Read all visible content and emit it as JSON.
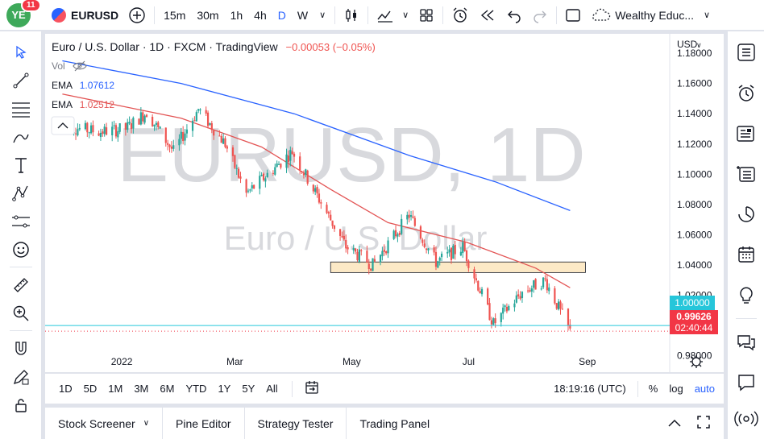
{
  "topbar": {
    "notification_count": "11",
    "avatar_text": "YE",
    "symbol": "EURUSD",
    "intervals": [
      "15m",
      "30m",
      "1h",
      "4h",
      "D",
      "W"
    ],
    "active_interval": "D",
    "layout_name": "Wealthy Educ..."
  },
  "legend": {
    "title": "Euro / U.S. Dollar · 1D · FXCM · TradingView",
    "change": "−0.00053 (−0.05%)",
    "vol": "Vol",
    "ema1_label": "EMA",
    "ema1_value": "1.07612",
    "ema2_label": "EMA",
    "ema2_value": "1.02512"
  },
  "watermark": {
    "symbol": "EURUSD, 1D",
    "name": "Euro / U.S. Dollar"
  },
  "price_axis": {
    "currency": "USD",
    "ticks": [
      "1.18000",
      "1.16000",
      "1.14000",
      "1.12000",
      "1.10000",
      "1.08000",
      "1.06000",
      "1.04000",
      "1.02000",
      "1.00000",
      "0.98000"
    ],
    "last_price": "0.99626",
    "countdown": "02:40:44",
    "highlight_price": "1.00000"
  },
  "time_axis": {
    "ticks": [
      "2022",
      "Mar",
      "May",
      "Jul",
      "Sep"
    ]
  },
  "range_bar": {
    "ranges": [
      "1D",
      "5D",
      "1M",
      "3M",
      "6M",
      "YTD",
      "1Y",
      "5Y",
      "All"
    ],
    "clock": "18:19:16 (UTC)",
    "percent": "%",
    "log": "log",
    "auto": "auto"
  },
  "bottom_tabs": [
    "Stock Screener",
    "Pine Editor",
    "Strategy Tester",
    "Trading Panel"
  ],
  "colors": {
    "up": "#26a69a",
    "down": "#ef5350",
    "ema_blue": "#2962ff",
    "ema_red": "#e35454",
    "accent": "#2962ff",
    "zone": "#fce9c6"
  },
  "chart_data": {
    "type": "candlestick",
    "symbol": "EURUSD",
    "timeframe": "1D",
    "x_ticks": [
      "2022",
      "Mar",
      "May",
      "Jul",
      "Sep"
    ],
    "ylim": [
      0.975,
      1.185
    ],
    "log_scale": false,
    "grid": false,
    "close_path": [
      {
        "t": "2021-12-01",
        "v": 1.132
      },
      {
        "t": "2021-12-20",
        "v": 1.128
      },
      {
        "t": "2022-01-03",
        "v": 1.13
      },
      {
        "t": "2022-01-14",
        "v": 1.141
      },
      {
        "t": "2022-01-28",
        "v": 1.115
      },
      {
        "t": "2022-02-10",
        "v": 1.143
      },
      {
        "t": "2022-02-24",
        "v": 1.12
      },
      {
        "t": "2022-03-07",
        "v": 1.087
      },
      {
        "t": "2022-03-31",
        "v": 1.115
      },
      {
        "t": "2022-04-28",
        "v": 1.052
      },
      {
        "t": "2022-05-12",
        "v": 1.04
      },
      {
        "t": "2022-05-31",
        "v": 1.073
      },
      {
        "t": "2022-06-14",
        "v": 1.042
      },
      {
        "t": "2022-06-28",
        "v": 1.052
      },
      {
        "t": "2022-07-14",
        "v": 1.001
      },
      {
        "t": "2022-07-29",
        "v": 1.022
      },
      {
        "t": "2022-08-10",
        "v": 1.03
      },
      {
        "t": "2022-08-23",
        "v": 0.996
      }
    ],
    "ema_long": {
      "name": "EMA",
      "last": 1.07612,
      "points": [
        {
          "t": "2021-12-01",
          "v": 1.175
        },
        {
          "t": "2022-02-01",
          "v": 1.16
        },
        {
          "t": "2022-04-01",
          "v": 1.14
        },
        {
          "t": "2022-06-01",
          "v": 1.112
        },
        {
          "t": "2022-07-15",
          "v": 1.095
        },
        {
          "t": "2022-08-23",
          "v": 1.076
        }
      ]
    },
    "ema_short": {
      "name": "EMA",
      "last": 1.02512,
      "points": [
        {
          "t": "2021-12-01",
          "v": 1.153
        },
        {
          "t": "2022-02-01",
          "v": 1.137
        },
        {
          "t": "2022-03-15",
          "v": 1.118
        },
        {
          "t": "2022-04-20",
          "v": 1.09
        },
        {
          "t": "2022-05-20",
          "v": 1.068
        },
        {
          "t": "2022-06-30",
          "v": 1.055
        },
        {
          "t": "2022-08-05",
          "v": 1.038
        },
        {
          "t": "2022-08-23",
          "v": 1.025
        }
      ]
    },
    "zone": {
      "from": "2022-04-20",
      "to": "2022-08-31",
      "low": 1.035,
      "high": 1.042
    },
    "horizontal_line": 1.0,
    "last_price": 0.99626
  }
}
